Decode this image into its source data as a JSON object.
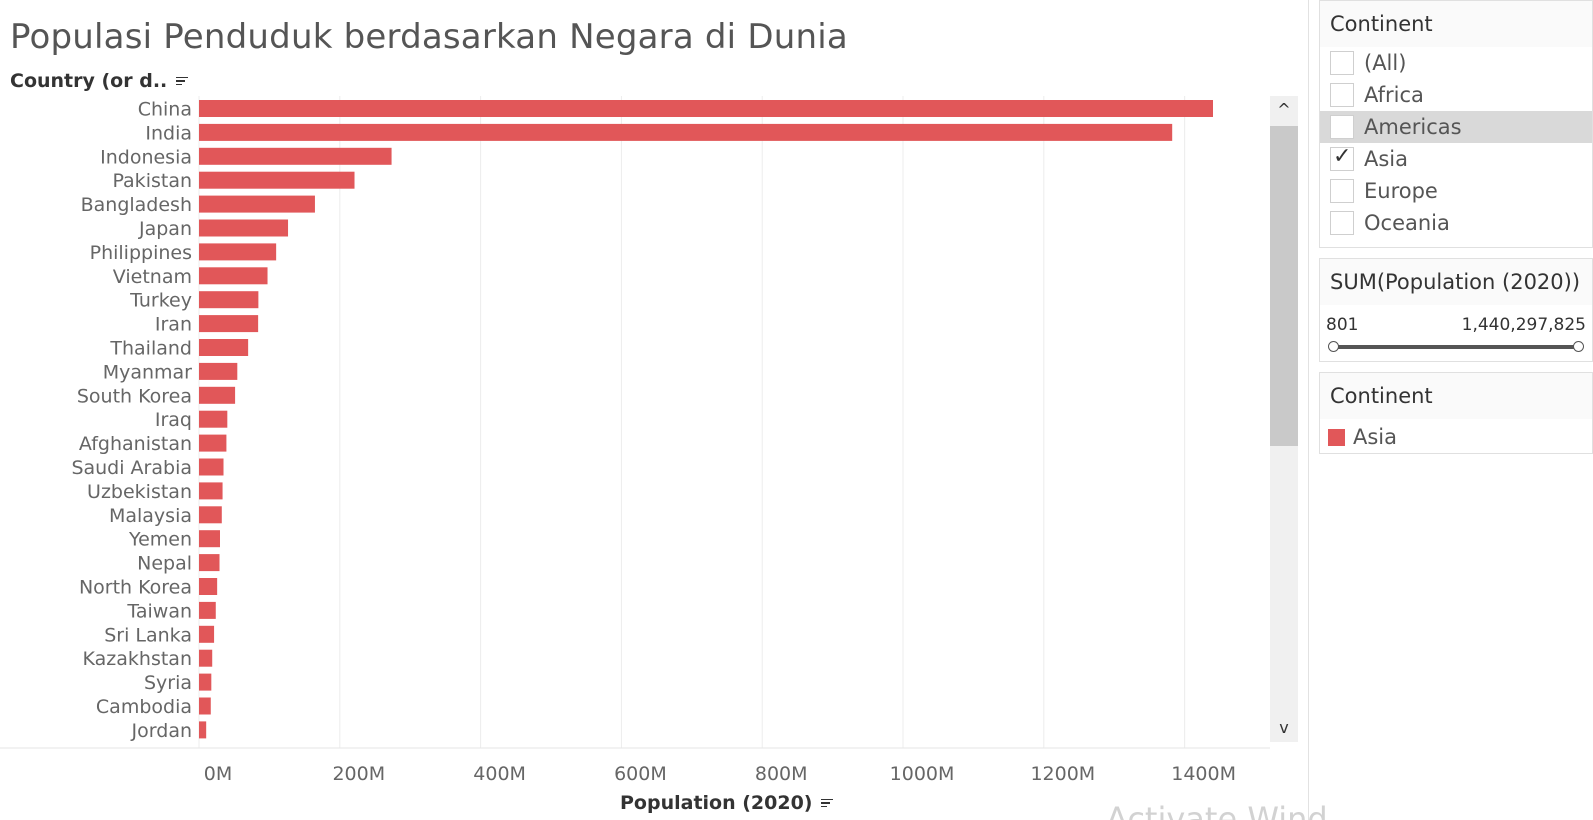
{
  "title": "Populasi Penduduk berdasarkan Negara di Dunia",
  "row_header": "Country (or d..",
  "x_axis_title": "Population (2020)",
  "watermark": "Activate Wind",
  "colors": {
    "bar": "#E15759",
    "grid": "#ececec",
    "text": "#555555"
  },
  "chart_data": {
    "type": "bar",
    "orientation": "horizontal",
    "categories": [
      "China",
      "India",
      "Indonesia",
      "Pakistan",
      "Bangladesh",
      "Japan",
      "Philippines",
      "Vietnam",
      "Turkey",
      "Iran",
      "Thailand",
      "Myanmar",
      "South Korea",
      "Iraq",
      "Afghanistan",
      "Saudi Arabia",
      "Uzbekistan",
      "Malaysia",
      "Yemen",
      "Nepal",
      "North Korea",
      "Taiwan",
      "Sri Lanka",
      "Kazakhstan",
      "Syria",
      "Cambodia",
      "Jordan"
    ],
    "values": [
      1440297825,
      1382345085,
      273523615,
      220892340,
      164689383,
      126476461,
      109581078,
      97338579,
      84339067,
      83992949,
      69799978,
      54409800,
      51269185,
      40222493,
      38928346,
      34813871,
      33469203,
      32365999,
      29825964,
      29136808,
      25778816,
      23816775,
      21413249,
      18776707,
      17500658,
      16718965,
      10203134
    ],
    "xlabel": "Population (2020)",
    "ylabel": "Country (or d..",
    "xticks": [
      "0M",
      "200M",
      "400M",
      "600M",
      "800M",
      "1000M",
      "1200M",
      "1400M"
    ],
    "xlim": [
      0,
      1520000000
    ],
    "grid": true
  },
  "scrollbar": {
    "up_icon": "chevron-up-icon",
    "down_icon": "chevron-down-icon",
    "up_glyph": "^",
    "down_glyph": "v"
  },
  "filter": {
    "title": "Continent",
    "items": [
      {
        "label": "(All)",
        "checked": false,
        "highlighted": false
      },
      {
        "label": "Africa",
        "checked": false,
        "highlighted": false
      },
      {
        "label": "Americas",
        "checked": false,
        "highlighted": true
      },
      {
        "label": "Asia",
        "checked": true,
        "highlighted": false
      },
      {
        "label": "Europe",
        "checked": false,
        "highlighted": false
      },
      {
        "label": "Oceania",
        "checked": false,
        "highlighted": false
      }
    ],
    "check_glyph": "✓"
  },
  "range_filter": {
    "title": "SUM(Population (2020))",
    "min_label": "801",
    "max_label": "1,440,297,825"
  },
  "legend": {
    "title": "Continent",
    "items": [
      {
        "label": "Asia",
        "color": "#E15759"
      }
    ]
  }
}
